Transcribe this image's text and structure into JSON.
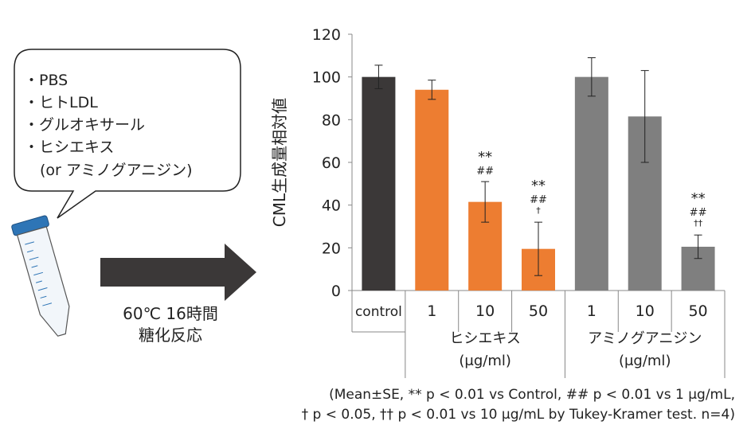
{
  "reagents": [
    "・PBS",
    "・ヒトLDL",
    "・グルオキサール",
    "・ヒシエキス",
    "(or アミノグアニジン)"
  ],
  "conditions": [
    "60℃ 16時間",
    "糖化反応"
  ],
  "footnote": {
    "line1": "(Mean±SE, ** p < 0.01 vs Control, ## p < 0.01 vs 1 μg/mL,",
    "line2": "† p < 0.05, †† p < 0.01 vs 10 μg/mL by Tukey-Kramer test. n=4)"
  },
  "colors": {
    "control": "#3b3838",
    "hishi": "#ed7d31",
    "amino": "#7f7f7f",
    "tube_cap": "#2e75b6",
    "tube_marks": "#2e75b6",
    "arrow": "#3b3838"
  },
  "chart_data": {
    "type": "bar",
    "ylabel": "CML生成量相対値",
    "ylim": [
      0,
      120
    ],
    "yticks": [
      0,
      20,
      40,
      60,
      80,
      100,
      120
    ],
    "categories": [
      "control",
      "1",
      "10",
      "50",
      "1",
      "10",
      "50"
    ],
    "groups": [
      {
        "label": "ヒシエキス",
        "unit": "(μg/ml)",
        "indices": [
          1,
          2,
          3
        ]
      },
      {
        "label": "アミノグアニジン",
        "unit": "(μg/ml)",
        "indices": [
          4,
          5,
          6
        ]
      }
    ],
    "values": [
      100,
      94,
      41.5,
      19.5,
      100,
      81.5,
      20.5
    ],
    "errors": [
      5.5,
      4.5,
      9.5,
      12.5,
      9,
      21.5,
      5.5
    ],
    "bar_groups": [
      "control",
      "hishi",
      "hishi",
      "hishi",
      "amino",
      "amino",
      "amino"
    ],
    "annotations": [
      {
        "index": 2,
        "lines": [
          "**",
          "##"
        ]
      },
      {
        "index": 3,
        "lines": [
          "**",
          "##",
          "†"
        ]
      },
      {
        "index": 6,
        "lines": [
          "**",
          "##",
          "††"
        ]
      }
    ]
  }
}
